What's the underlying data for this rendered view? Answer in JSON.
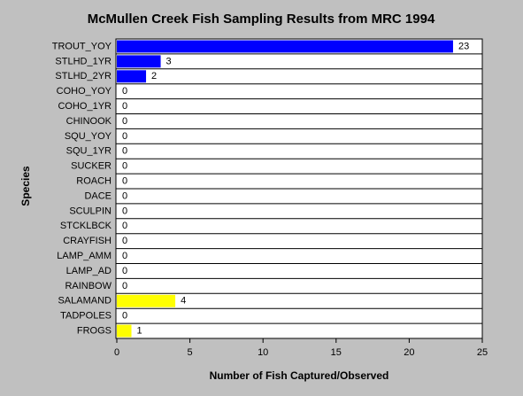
{
  "chart_data": {
    "type": "hbar",
    "title": "McMullen Creek Fish Sampling Results from MRC 1994",
    "x_label": "Number of Fish Captured/Observed",
    "y_label": "Species",
    "categories": [
      "TROUT_YOY",
      "STLHD_1YR",
      "STLHD_2YR",
      "COHO_YOY",
      "COHO_1YR",
      "CHINOOK",
      "SQU_YOY",
      "SQU_1YR",
      "SUCKER",
      "ROACH",
      "DACE",
      "SCULPIN",
      "STCKLBCK",
      "CRAYFISH",
      "LAMP_AMM",
      "LAMP_AD",
      "RAINBOW",
      "SALAMAND",
      "TADPOLES",
      "FROGS"
    ],
    "values": [
      23,
      3,
      2,
      0,
      0,
      0,
      0,
      0,
      0,
      0,
      0,
      0,
      0,
      0,
      0,
      0,
      0,
      4,
      0,
      1
    ],
    "colors": [
      "#0000ff",
      "#0000ff",
      "#0000ff",
      "#0000ff",
      "#0000ff",
      "#0000ff",
      "#0000ff",
      "#0000ff",
      "#0000ff",
      "#0000ff",
      "#0000ff",
      "#0000ff",
      "#0000ff",
      "#0000ff",
      "#0000ff",
      "#0000ff",
      "#0000ff",
      "#ffff00",
      "#ffff00",
      "#ffff00"
    ],
    "xlim": [
      0,
      25
    ],
    "xticks": [
      0,
      5,
      10,
      15,
      20,
      25
    ]
  }
}
